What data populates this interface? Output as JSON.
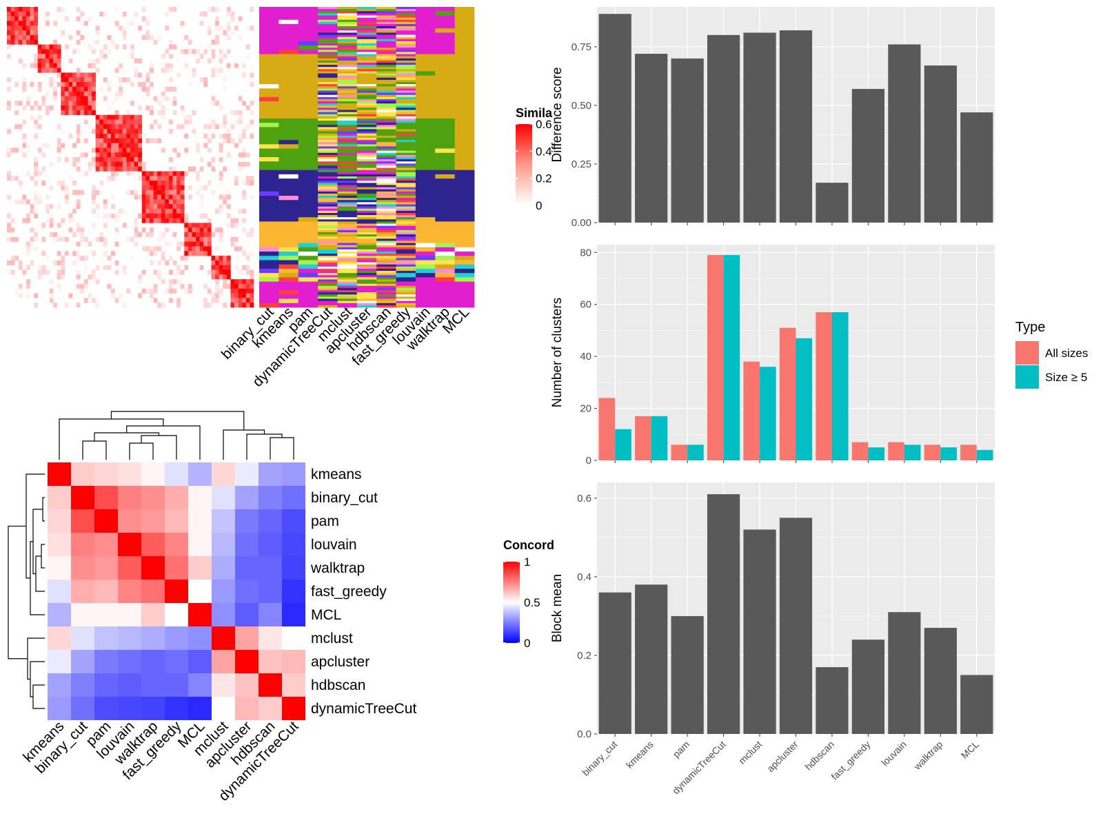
{
  "colors": {
    "bar_gray": "#595959",
    "panel_bg": "#ebebeb",
    "all_sizes": "#F8766D",
    "size_ge5": "#00BFC4",
    "sim_high": "#ff0000",
    "conc_high": "#ff0000",
    "conc_mid": "#ffffff",
    "conc_low": "#0000ff"
  },
  "chart_data": [
    {
      "id": "similarity-heatmap",
      "type": "heatmap",
      "description_free": true,
      "colorbar": {
        "title": "Simila",
        "ticks": [
          "0.6",
          "0.4",
          "0.2",
          "0"
        ],
        "range": [
          0,
          0.6
        ]
      }
    },
    {
      "id": "membership-heatmap",
      "type": "heatmap",
      "columns": [
        "binary_cut",
        "kmeans",
        "pam",
        "dynamicTreeCut",
        "mclust",
        "apcluster",
        "hdbscan",
        "fast_greedy",
        "louvain",
        "walktrap",
        "MCL"
      ]
    },
    {
      "id": "concordance-heatmap",
      "type": "heatmap",
      "rows": [
        "kmeans",
        "binary_cut",
        "pam",
        "louvain",
        "walktrap",
        "fast_greedy",
        "MCL",
        "mclust",
        "apcluster",
        "hdbscan",
        "dynamicTreeCut"
      ],
      "columns": [
        "kmeans",
        "binary_cut",
        "pam",
        "louvain",
        "walktrap",
        "fast_greedy",
        "MCL",
        "mclust",
        "apcluster",
        "hdbscan",
        "dynamicTreeCut"
      ],
      "colorbar": {
        "title": "Concord",
        "ticks": [
          "1",
          "0.5",
          "0"
        ],
        "range": [
          0,
          1
        ]
      },
      "matrix": [
        [
          1.0,
          0.6,
          0.58,
          0.56,
          0.52,
          0.44,
          0.35,
          0.58,
          0.46,
          0.32,
          0.3
        ],
        [
          0.6,
          1.0,
          0.85,
          0.75,
          0.72,
          0.66,
          0.52,
          0.44,
          0.32,
          0.25,
          0.22
        ],
        [
          0.58,
          0.85,
          1.0,
          0.72,
          0.7,
          0.64,
          0.52,
          0.38,
          0.24,
          0.2,
          0.15
        ],
        [
          0.56,
          0.75,
          0.72,
          1.0,
          0.82,
          0.74,
          0.52,
          0.36,
          0.22,
          0.18,
          0.14
        ],
        [
          0.52,
          0.72,
          0.7,
          0.82,
          1.0,
          0.78,
          0.6,
          0.34,
          0.2,
          0.2,
          0.13
        ],
        [
          0.44,
          0.66,
          0.64,
          0.74,
          0.78,
          1.0,
          0.5,
          0.3,
          0.22,
          0.2,
          0.1
        ],
        [
          0.35,
          0.52,
          0.52,
          0.52,
          0.6,
          0.5,
          1.0,
          0.28,
          0.18,
          0.26,
          0.08
        ],
        [
          0.58,
          0.44,
          0.38,
          0.36,
          0.34,
          0.3,
          0.28,
          1.0,
          0.68,
          0.55,
          0.5
        ],
        [
          0.46,
          0.32,
          0.24,
          0.22,
          0.2,
          0.22,
          0.18,
          0.68,
          1.0,
          0.62,
          0.64
        ],
        [
          0.32,
          0.25,
          0.2,
          0.18,
          0.2,
          0.2,
          0.26,
          0.55,
          0.62,
          1.0,
          0.6
        ],
        [
          0.3,
          0.22,
          0.15,
          0.14,
          0.13,
          0.1,
          0.08,
          0.5,
          0.64,
          0.6,
          1.0
        ]
      ]
    },
    {
      "id": "difference-score",
      "type": "bar",
      "categories": [
        "binary_cut",
        "kmeans",
        "pam",
        "dynamicTreeCut",
        "mclust",
        "apcluster",
        "hdbscan",
        "fast_greedy",
        "louvain",
        "walktrap",
        "MCL"
      ],
      "values": [
        0.89,
        0.72,
        0.7,
        0.8,
        0.81,
        0.82,
        0.17,
        0.57,
        0.76,
        0.67,
        0.47
      ],
      "ylabel": "Difference score",
      "ylim": [
        0,
        0.92
      ],
      "yticks": [
        "0.00",
        "0.25",
        "0.50",
        "0.75"
      ],
      "ytick_values": [
        0,
        0.25,
        0.5,
        0.75
      ]
    },
    {
      "id": "number-of-clusters",
      "type": "bar",
      "categories": [
        "binary_cut",
        "kmeans",
        "pam",
        "dynamicTreeCut",
        "mclust",
        "apcluster",
        "hdbscan",
        "fast_greedy",
        "louvain",
        "walktrap",
        "MCL"
      ],
      "series": [
        {
          "name": "All sizes",
          "values": [
            24,
            17,
            6,
            79,
            38,
            51,
            57,
            7,
            7,
            6,
            6
          ]
        },
        {
          "name": "Size ≥ 5",
          "values": [
            12,
            17,
            6,
            79,
            36,
            47,
            57,
            5,
            6,
            5,
            4
          ]
        }
      ],
      "ylabel": "Number of clusters",
      "ylim": [
        0,
        83
      ],
      "yticks": [
        "0",
        "20",
        "40",
        "60",
        "80"
      ],
      "ytick_values": [
        0,
        20,
        40,
        60,
        80
      ],
      "legend": {
        "title": "Type",
        "placement": "right"
      }
    },
    {
      "id": "block-mean",
      "type": "bar",
      "categories": [
        "binary_cut",
        "kmeans",
        "pam",
        "dynamicTreeCut",
        "mclust",
        "apcluster",
        "hdbscan",
        "fast_greedy",
        "louvain",
        "walktrap",
        "MCL"
      ],
      "values": [
        0.36,
        0.38,
        0.3,
        0.61,
        0.52,
        0.55,
        0.17,
        0.24,
        0.31,
        0.27,
        0.15
      ],
      "ylabel": "Block mean",
      "ylim": [
        0,
        0.64
      ],
      "yticks": [
        "0.0",
        "0.2",
        "0.4",
        "0.6"
      ],
      "ytick_values": [
        0,
        0.2,
        0.4,
        0.6
      ]
    }
  ]
}
